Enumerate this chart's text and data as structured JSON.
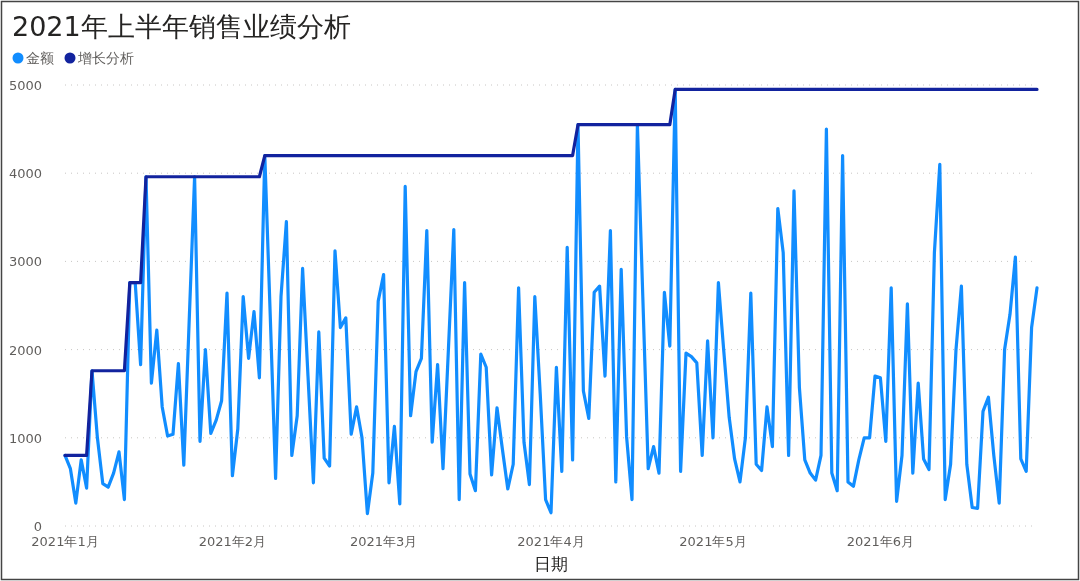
{
  "chart_data": {
    "type": "line",
    "title": "2021年上半年销售业绩分析",
    "xlabel": "日期",
    "xlim": [
      "2021-01-01",
      "2021-06-30"
    ],
    "xticks": [
      {
        "value": "2021-01-01",
        "label": "2021年1月"
      },
      {
        "value": "2021-02-01",
        "label": "2021年2月"
      },
      {
        "value": "2021-03-01",
        "label": "2021年3月"
      },
      {
        "value": "2021-04-01",
        "label": "2021年4月"
      },
      {
        "value": "2021-05-01",
        "label": "2021年5月"
      },
      {
        "value": "2021-06-01",
        "label": "2021年6月"
      }
    ],
    "ylim": [
      0,
      5000
    ],
    "yticks": [
      0,
      1000,
      2000,
      3000,
      4000,
      5000
    ],
    "grid": "y",
    "legend": "top left",
    "marker": "none",
    "line_style": "solid",
    "series": [
      {
        "name": "金额",
        "color": "#118dff",
        "x": [
          "2021-01-01",
          "2021-01-02",
          "2021-01-03",
          "2021-01-04",
          "2021-01-05",
          "2021-01-06",
          "2021-01-07",
          "2021-01-08",
          "2021-01-09",
          "2021-01-10",
          "2021-01-11",
          "2021-01-12",
          "2021-01-13",
          "2021-01-14",
          "2021-01-15",
          "2021-01-16",
          "2021-01-17",
          "2021-01-18",
          "2021-01-19",
          "2021-01-20",
          "2021-01-21",
          "2021-01-22",
          "2021-01-23",
          "2021-01-24",
          "2021-01-25",
          "2021-01-26",
          "2021-01-27",
          "2021-01-28",
          "2021-01-29",
          "2021-01-30",
          "2021-01-31",
          "2021-02-01",
          "2021-02-02",
          "2021-02-03",
          "2021-02-04",
          "2021-02-05",
          "2021-02-06",
          "2021-02-07",
          "2021-02-08",
          "2021-02-09",
          "2021-02-10",
          "2021-02-11",
          "2021-02-12",
          "2021-02-13",
          "2021-02-14",
          "2021-02-15",
          "2021-02-16",
          "2021-02-17",
          "2021-02-18",
          "2021-02-19",
          "2021-02-20",
          "2021-02-21",
          "2021-02-22",
          "2021-02-23",
          "2021-02-24",
          "2021-02-25",
          "2021-02-26",
          "2021-02-27",
          "2021-02-28",
          "2021-03-01",
          "2021-03-02",
          "2021-03-03",
          "2021-03-04",
          "2021-03-05",
          "2021-03-06",
          "2021-03-07",
          "2021-03-08",
          "2021-03-09",
          "2021-03-10",
          "2021-03-11",
          "2021-03-12",
          "2021-03-13",
          "2021-03-14",
          "2021-03-15",
          "2021-03-16",
          "2021-03-17",
          "2021-03-18",
          "2021-03-19",
          "2021-03-20",
          "2021-03-21",
          "2021-03-22",
          "2021-03-23",
          "2021-03-24",
          "2021-03-25",
          "2021-03-26",
          "2021-03-27",
          "2021-03-28",
          "2021-03-29",
          "2021-03-30",
          "2021-03-31",
          "2021-04-01",
          "2021-04-02",
          "2021-04-03",
          "2021-04-04",
          "2021-04-05",
          "2021-04-06",
          "2021-04-07",
          "2021-04-08",
          "2021-04-09",
          "2021-04-10",
          "2021-04-11",
          "2021-04-12",
          "2021-04-13",
          "2021-04-14",
          "2021-04-15",
          "2021-04-16",
          "2021-04-17",
          "2021-04-18",
          "2021-04-19",
          "2021-04-20",
          "2021-04-21",
          "2021-04-22",
          "2021-04-23",
          "2021-04-24",
          "2021-04-25",
          "2021-04-26",
          "2021-04-27",
          "2021-04-28",
          "2021-04-29",
          "2021-04-30",
          "2021-05-01",
          "2021-05-02",
          "2021-05-03",
          "2021-05-04",
          "2021-05-05",
          "2021-05-06",
          "2021-05-07",
          "2021-05-08",
          "2021-05-09",
          "2021-05-10",
          "2021-05-11",
          "2021-05-12",
          "2021-05-13",
          "2021-05-14",
          "2021-05-15",
          "2021-05-16",
          "2021-05-17",
          "2021-05-18",
          "2021-05-19",
          "2021-05-20",
          "2021-05-21",
          "2021-05-22",
          "2021-05-23",
          "2021-05-24",
          "2021-05-25",
          "2021-05-26",
          "2021-05-27",
          "2021-05-28",
          "2021-05-29",
          "2021-05-30",
          "2021-05-31",
          "2021-06-01",
          "2021-06-02",
          "2021-06-03",
          "2021-06-04",
          "2021-06-05",
          "2021-06-06",
          "2021-06-07",
          "2021-06-08",
          "2021-06-09",
          "2021-06-10",
          "2021-06-11",
          "2021-06-12",
          "2021-06-13",
          "2021-06-14",
          "2021-06-15",
          "2021-06-16",
          "2021-06-17",
          "2021-06-18",
          "2021-06-19",
          "2021-06-20",
          "2021-06-21",
          "2021-06-22",
          "2021-06-23",
          "2021-06-24",
          "2021-06-25",
          "2021-06-26",
          "2021-06-27",
          "2021-06-28",
          "2021-06-29",
          "2021-06-30"
        ],
        "values": [
          800,
          650,
          260,
          750,
          430,
          1760,
          1000,
          480,
          440,
          600,
          840,
          300,
          2760,
          2760,
          1830,
          3960,
          1620,
          2220,
          1350,
          1020,
          1040,
          1840,
          690,
          2330,
          3960,
          960,
          2000,
          1050,
          1200,
          1420,
          2640,
          570,
          1100,
          2600,
          1900,
          2430,
          1680,
          4200,
          2400,
          540,
          2600,
          3450,
          800,
          1250,
          2920,
          1700,
          490,
          2200,
          770,
          680,
          3120,
          2250,
          2360,
          1040,
          1350,
          1000,
          140,
          600,
          2550,
          2850,
          490,
          1130,
          250,
          3850,
          1250,
          1750,
          1900,
          3350,
          950,
          1830,
          650,
          2000,
          3360,
          300,
          2760,
          590,
          400,
          1950,
          1800,
          580,
          1340,
          870,
          420,
          700,
          2700,
          950,
          470,
          2600,
          1500,
          300,
          150,
          1800,
          620,
          3160,
          750,
          4550,
          1530,
          1220,
          2650,
          2720,
          1700,
          3350,
          500,
          2910,
          1010,
          300,
          4550,
          2600,
          650,
          900,
          600,
          2650,
          2040,
          4950,
          620,
          1960,
          1920,
          1850,
          800,
          2100,
          1000,
          2760,
          1980,
          1230,
          760,
          500,
          1000,
          2640,
          700,
          630,
          1350,
          900,
          3600,
          3100,
          800,
          3800,
          1570,
          750,
          600,
          520,
          800,
          4500,
          600,
          400,
          4200,
          500,
          450,
          750,
          1000,
          1000,
          1700,
          1680,
          960,
          2700,
          280,
          800,
          2520,
          600,
          1620,
          760,
          640,
          3100,
          4100,
          300,
          700,
          2000,
          2720,
          700,
          210,
          200,
          1300,
          1460,
          800,
          260,
          2000,
          2400,
          3050,
          760,
          620,
          2250,
          2700
        ]
      },
      {
        "name": "增长分析",
        "color": "#12239e",
        "x": [
          "2021-01-01",
          "2021-01-05",
          "2021-01-06",
          "2021-01-12",
          "2021-01-13",
          "2021-01-15",
          "2021-01-16",
          "2021-02-06",
          "2021-02-07",
          "2021-04-05",
          "2021-04-06",
          "2021-04-23",
          "2021-04-24",
          "2021-06-30"
        ],
        "values": [
          800,
          800,
          1760,
          1760,
          2760,
          2760,
          3960,
          3960,
          4200,
          4200,
          4550,
          4550,
          4950,
          4950
        ]
      }
    ]
  }
}
